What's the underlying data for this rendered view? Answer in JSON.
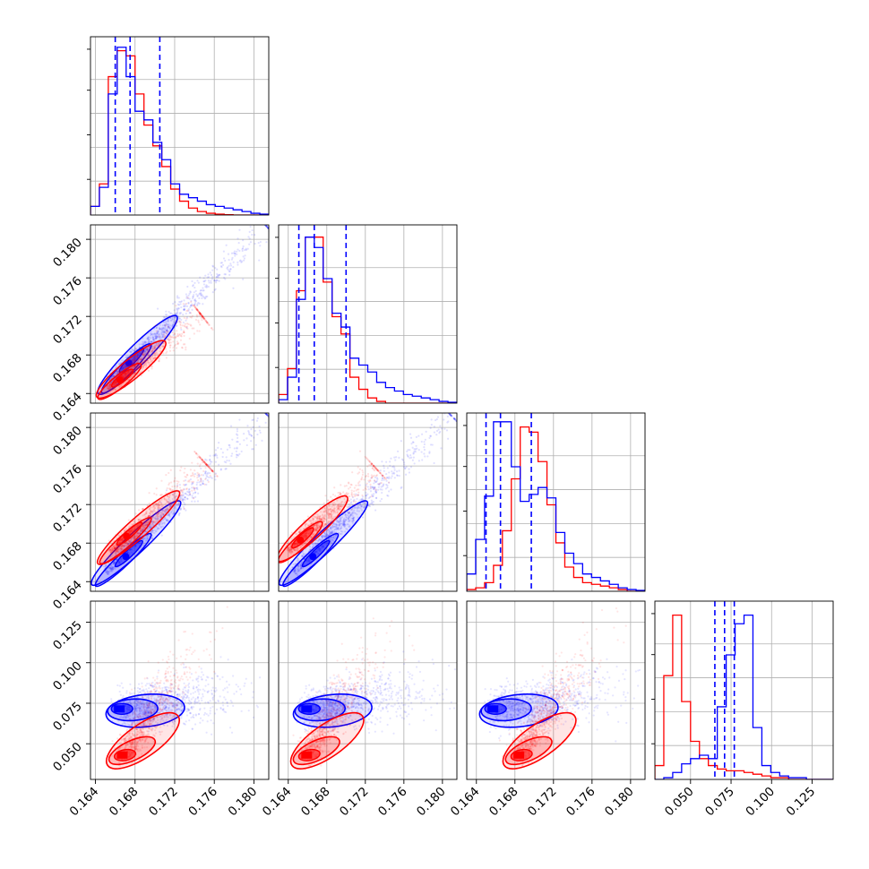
{
  "chart_data": {
    "type": "corner",
    "grid": true,
    "series": [
      {
        "name": "",
        "color": "#0000ff"
      },
      {
        "name": "",
        "color": "#ff0000"
      }
    ],
    "parameters": [
      {
        "range": [
          0.1635,
          0.1815
        ],
        "ticks": [
          0.164,
          0.168,
          0.172,
          0.176,
          0.18
        ],
        "tick_labels": [
          "0.164",
          "0.168",
          "0.172",
          "0.176",
          "0.180"
        ]
      },
      {
        "range": [
          0.163,
          0.1815
        ],
        "ticks": [
          0.164,
          0.168,
          0.172,
          0.176,
          0.18
        ],
        "tick_labels": [
          "0.164",
          "0.168",
          "0.172",
          "0.176",
          "0.180"
        ]
      },
      {
        "range": [
          0.163,
          0.1815
        ],
        "ticks": [
          0.164,
          0.168,
          0.172,
          0.176,
          0.18
        ],
        "tick_labels": [
          "0.164",
          "0.168",
          "0.172",
          "0.176",
          "0.180"
        ]
      },
      {
        "range": [
          0.028,
          0.138
        ],
        "ticks": [
          0.05,
          0.075,
          0.1,
          0.125
        ],
        "tick_labels": [
          "0.050",
          "0.075",
          "0.100",
          "0.125"
        ]
      }
    ],
    "quantiles_dashed_blue": [
      [
        0.166,
        0.1675,
        0.1705
      ],
      [
        0.1651,
        0.1667,
        0.17
      ],
      [
        0.165,
        0.1665,
        0.1697
      ],
      [
        0.065,
        0.071,
        0.077
      ]
    ],
    "histograms": [
      {
        "bins": [
          0.1635,
          0.1815
        ],
        "blue": [
          0.05,
          0.16,
          0.7,
          0.97,
          0.8,
          0.6,
          0.55,
          0.42,
          0.32,
          0.18,
          0.12,
          0.1,
          0.08,
          0.06,
          0.05,
          0.04,
          0.03,
          0.02,
          0.01,
          0.005
        ],
        "red": [
          0.05,
          0.18,
          0.8,
          0.95,
          0.92,
          0.7,
          0.52,
          0.4,
          0.28,
          0.15,
          0.08,
          0.04,
          0.02,
          0.01,
          0.005,
          0.002,
          0,
          0,
          0,
          0
        ]
      },
      {
        "bins": [
          0.163,
          0.1815
        ],
        "blue": [
          0.02,
          0.15,
          0.6,
          0.96,
          0.9,
          0.72,
          0.52,
          0.44,
          0.26,
          0.22,
          0.18,
          0.12,
          0.09,
          0.07,
          0.05,
          0.04,
          0.03,
          0.02,
          0.01,
          0.005
        ],
        "red": [
          0.05,
          0.2,
          0.65,
          0.96,
          0.96,
          0.7,
          0.5,
          0.4,
          0.15,
          0.08,
          0.03,
          0.01,
          0,
          0,
          0,
          0,
          0,
          0,
          0,
          0
        ]
      },
      {
        "bins": [
          0.163,
          0.1815
        ],
        "blue": [
          0.1,
          0.3,
          0.55,
          0.98,
          0.98,
          0.72,
          0.52,
          0.56,
          0.6,
          0.54,
          0.34,
          0.22,
          0.16,
          0.1,
          0.08,
          0.06,
          0.04,
          0.02,
          0.01,
          0.005
        ],
        "red": [
          0.01,
          0.02,
          0.05,
          0.15,
          0.35,
          0.65,
          0.95,
          0.92,
          0.75,
          0.5,
          0.28,
          0.14,
          0.08,
          0.05,
          0.04,
          0.03,
          0.02,
          0.01,
          0,
          0
        ]
      },
      {
        "bins": [
          0.028,
          0.138
        ],
        "blue": [
          0.0,
          0.01,
          0.04,
          0.09,
          0.12,
          0.14,
          0.12,
          0.42,
          0.72,
          0.9,
          0.95,
          0.3,
          0.08,
          0.04,
          0.02,
          0.01,
          0.01,
          0.0,
          0.0,
          0.0
        ],
        "red": [
          0.08,
          0.6,
          0.95,
          0.45,
          0.22,
          0.12,
          0.08,
          0.06,
          0.05,
          0.05,
          0.04,
          0.03,
          0.02,
          0.01,
          0.01,
          0.0,
          0.0,
          0.0,
          0.0,
          0.0
        ]
      }
    ],
    "scatter_blobs": [
      {
        "row": 1,
        "col": 0,
        "blue_core": [
          [
            0.1655,
            0.1652
          ],
          [
            0.1682,
            0.168
          ],
          [
            0.171,
            0.1708
          ]
        ],
        "blue_tail_end": [
          0.181,
          0.181
        ],
        "red_core": [
          [
            0.1652,
            0.1645
          ],
          [
            0.1672,
            0.166
          ],
          [
            0.17,
            0.1685
          ]
        ],
        "red_tail_end": [
          0.1745,
          0.172
        ]
      },
      {
        "row": 2,
        "col": 0,
        "blue_core": [
          [
            0.165,
            0.165
          ],
          [
            0.168,
            0.1675
          ],
          [
            0.1712,
            0.171
          ]
        ],
        "blue_tail_end": [
          0.181,
          0.181
        ],
        "red_core": [
          [
            0.1655,
            0.167
          ],
          [
            0.168,
            0.1695
          ],
          [
            0.1712,
            0.1722
          ]
        ],
        "red_tail_end": [
          0.175,
          0.176
        ]
      },
      {
        "row": 2,
        "col": 1,
        "blue_core": [
          [
            0.1645,
            0.165
          ],
          [
            0.1675,
            0.1675
          ],
          [
            0.1708,
            0.171
          ]
        ],
        "blue_tail_end": [
          0.1805,
          0.181
        ],
        "red_core": [
          [
            0.164,
            0.1672
          ],
          [
            0.166,
            0.169
          ],
          [
            0.169,
            0.1718
          ]
        ],
        "red_tail_end": [
          0.173,
          0.1755
        ]
      },
      {
        "row": 3,
        "col": 0,
        "blue_center": [
          0.1665,
          0.0715
        ],
        "red_center": [
          0.1668,
          0.043
        ]
      },
      {
        "row": 3,
        "col": 1,
        "blue_center": [
          0.166,
          0.0715
        ],
        "red_center": [
          0.166,
          0.043
        ]
      },
      {
        "row": 3,
        "col": 2,
        "blue_center": [
          0.1658,
          0.0715
        ],
        "red_center": [
          0.1685,
          0.043
        ]
      }
    ]
  }
}
